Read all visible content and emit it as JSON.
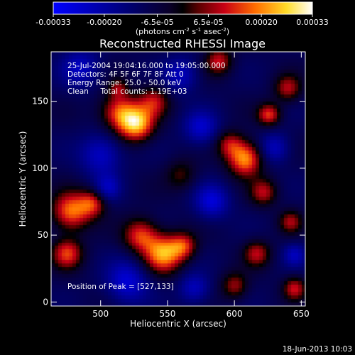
{
  "colorbar": {
    "ticks": [
      "-0.00033",
      "-0.00020",
      "-6.5e-05",
      "6.5e-05",
      "0.00020",
      "0.00033"
    ],
    "tick_values": [
      -0.00033,
      -0.0002,
      -6.5e-05,
      6.5e-05,
      0.0002,
      0.00033
    ],
    "range": [
      -0.00033,
      0.00033
    ],
    "unit_main": "(photons cm",
    "unit_sup1": "-2",
    "unit_mid": " s",
    "unit_sup2": "-1",
    "unit_end": " asec",
    "unit_sup3": "-2",
    "unit_close": ")"
  },
  "chart_data": {
    "type": "heatmap",
    "title": "Reconstructed RHESSI Image",
    "xlabel": "Heliocentric X (arcsec)",
    "ylabel": "Heliocentric Y (arcsec)",
    "xlim": [
      463,
      653
    ],
    "ylim": [
      -3,
      187
    ],
    "x_ticks": [
      500,
      550,
      600,
      650
    ],
    "y_ticks": [
      0,
      50,
      100,
      150
    ],
    "info_lines": [
      "25-Jul-2004 19:04:16.000 to 19:05:00.000",
      "Detectors: 4F 5F 6F 7F 8F  Att 0",
      "Energy Range: 25.0 - 50.0 keV",
      "Clean     Total counts: 1.19E+03"
    ],
    "peak_label": "Position of Peak = [527,133]",
    "peak": [
      527,
      133
    ],
    "sources": [
      {
        "x": 527,
        "y": 133,
        "v": 1.0,
        "s": 9
      },
      {
        "x": 514,
        "y": 142,
        "v": 0.75,
        "s": 10
      },
      {
        "x": 540,
        "y": 150,
        "v": 0.55,
        "s": 8
      },
      {
        "x": 608,
        "y": 107,
        "v": 0.95,
        "s": 9
      },
      {
        "x": 596,
        "y": 118,
        "v": 0.5,
        "s": 7
      },
      {
        "x": 547,
        "y": 36,
        "v": 0.95,
        "s": 10
      },
      {
        "x": 530,
        "y": 50,
        "v": 0.7,
        "s": 9
      },
      {
        "x": 562,
        "y": 42,
        "v": 0.6,
        "s": 7
      },
      {
        "x": 478,
        "y": 68,
        "v": 0.85,
        "s": 10
      },
      {
        "x": 494,
        "y": 74,
        "v": 0.6,
        "s": 7
      },
      {
        "x": 475,
        "y": 36,
        "v": 0.7,
        "s": 8
      },
      {
        "x": 588,
        "y": 180,
        "v": 0.6,
        "s": 7
      },
      {
        "x": 626,
        "y": 140,
        "v": 0.7,
        "s": 6
      },
      {
        "x": 640,
        "y": 160,
        "v": 0.55,
        "s": 7
      },
      {
        "x": 622,
        "y": 82,
        "v": 0.55,
        "s": 7
      },
      {
        "x": 642,
        "y": 60,
        "v": 0.5,
        "s": 6
      },
      {
        "x": 617,
        "y": 36,
        "v": 0.55,
        "s": 7
      },
      {
        "x": 600,
        "y": 12,
        "v": 0.5,
        "s": 7
      },
      {
        "x": 645,
        "y": 10,
        "v": 0.6,
        "s": 6
      },
      {
        "x": 513,
        "y": 160,
        "v": 0.4,
        "s": 5
      },
      {
        "x": 560,
        "y": 95,
        "v": 0.35,
        "s": 8
      },
      {
        "x": 583,
        "y": 75,
        "v": -0.55,
        "s": 9
      },
      {
        "x": 500,
        "y": 110,
        "v": -0.5,
        "s": 11
      },
      {
        "x": 575,
        "y": 130,
        "v": -0.5,
        "s": 9
      },
      {
        "x": 560,
        "y": 170,
        "v": -0.45,
        "s": 9
      },
      {
        "x": 485,
        "y": 175,
        "v": -0.45,
        "s": 10
      },
      {
        "x": 520,
        "y": 15,
        "v": -0.55,
        "s": 11
      },
      {
        "x": 570,
        "y": 10,
        "v": -0.45,
        "s": 8
      },
      {
        "x": 505,
        "y": 85,
        "v": -0.4,
        "s": 7
      },
      {
        "x": 630,
        "y": 115,
        "v": -0.45,
        "s": 8
      },
      {
        "x": 645,
        "y": 35,
        "v": -0.4,
        "s": 6
      }
    ]
  },
  "footer": {
    "date": "18-Jun-2013 10:03"
  }
}
